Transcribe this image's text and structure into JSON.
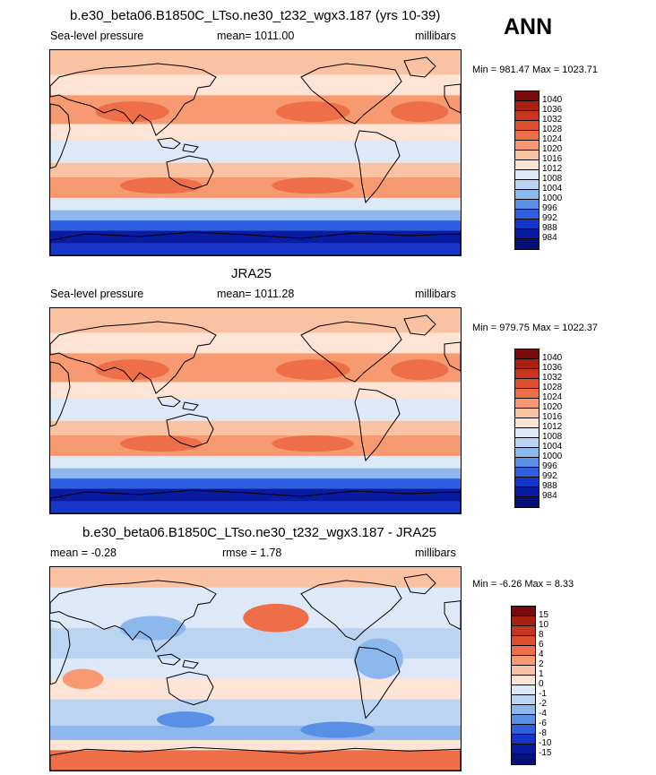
{
  "ann_label": "ANN",
  "panels": [
    {
      "title": "b.e30_beta06.B1850C_LTso.ne30_t232_wgx3.187 (yrs 10-39)",
      "left": "Sea-level pressure",
      "center": "mean= 1011.00",
      "right": "millibars",
      "minmax": "Min = 981.47 Max = 1023.71",
      "colorbar": {
        "labels": [
          "1040",
          "1036",
          "1032",
          "1028",
          "1024",
          "1020",
          "1016",
          "1012",
          "1008",
          "1004",
          "1000",
          "996",
          "992",
          "988",
          "984"
        ],
        "colors": [
          "#7a0b0b",
          "#a8200f",
          "#c8341d",
          "#de4f2e",
          "#ee6e48",
          "#f79a72",
          "#f9c3a3",
          "#fde4d4",
          "#dde9f8",
          "#bad4f2",
          "#8db8ee",
          "#5a8fe6",
          "#2f5fde",
          "#1636c9",
          "#0a1b9f",
          "#051077"
        ]
      }
    },
    {
      "title": "JRA25",
      "left": "Sea-level pressure",
      "center": "mean= 1011.28",
      "right": "millibars",
      "minmax": "Min = 979.75 Max = 1022.37",
      "colorbar": {
        "labels": [
          "1040",
          "1036",
          "1032",
          "1028",
          "1024",
          "1020",
          "1016",
          "1012",
          "1008",
          "1004",
          "1000",
          "996",
          "992",
          "988",
          "984"
        ],
        "colors": [
          "#7a0b0b",
          "#a8200f",
          "#c8341d",
          "#de4f2e",
          "#ee6e48",
          "#f79a72",
          "#f9c3a3",
          "#fde4d4",
          "#dde9f8",
          "#bad4f2",
          "#8db8ee",
          "#5a8fe6",
          "#2f5fde",
          "#1636c9",
          "#0a1b9f",
          "#051077"
        ]
      }
    },
    {
      "title": "b.e30_beta06.B1850C_LTso.ne30_t232_wgx3.187 - JRA25",
      "left": "mean =  -0.28",
      "center": "rmse =   1.78",
      "right": "millibars",
      "minmax": "Min =  -6.26 Max =   8.33",
      "colorbar": {
        "labels": [
          "15",
          "10",
          "8",
          "6",
          "4",
          "2",
          "1",
          "0",
          "-1",
          "-2",
          "-4",
          "-6",
          "-8",
          "-10",
          "-15"
        ],
        "colors": [
          "#7a0b0b",
          "#a8200f",
          "#c8341d",
          "#de4f2e",
          "#ee6e48",
          "#f79a72",
          "#f9c3a3",
          "#fde4d4",
          "#dde9f8",
          "#bad4f2",
          "#8db8ee",
          "#5a8fe6",
          "#2f5fde",
          "#1636c9",
          "#0a1b9f",
          "#051077"
        ]
      }
    }
  ],
  "chart_data": [
    {
      "type": "heatmap",
      "title": "b.e30_beta06.B1850C_LTso.ne30_t232_wgx3.187 (yrs 10-39)",
      "variable": "Sea-level pressure",
      "units": "millibars",
      "mean": 1011.0,
      "min": 981.47,
      "max": 1023.71,
      "levels": [
        984,
        988,
        992,
        996,
        1000,
        1004,
        1008,
        1012,
        1016,
        1020,
        1024,
        1028,
        1032,
        1036,
        1040
      ]
    },
    {
      "type": "heatmap",
      "title": "JRA25",
      "variable": "Sea-level pressure",
      "units": "millibars",
      "mean": 1011.28,
      "min": 979.75,
      "max": 1022.37,
      "levels": [
        984,
        988,
        992,
        996,
        1000,
        1004,
        1008,
        1012,
        1016,
        1020,
        1024,
        1028,
        1032,
        1036,
        1040
      ]
    },
    {
      "type": "heatmap",
      "title": "b.e30_beta06.B1850C_LTso.ne30_t232_wgx3.187 - JRA25",
      "units": "millibars",
      "mean": -0.28,
      "rmse": 1.78,
      "min": -6.26,
      "max": 8.33,
      "levels": [
        -15,
        -10,
        -8,
        -6,
        -4,
        -2,
        -1,
        0,
        1,
        2,
        4,
        6,
        8,
        10,
        15
      ]
    }
  ]
}
